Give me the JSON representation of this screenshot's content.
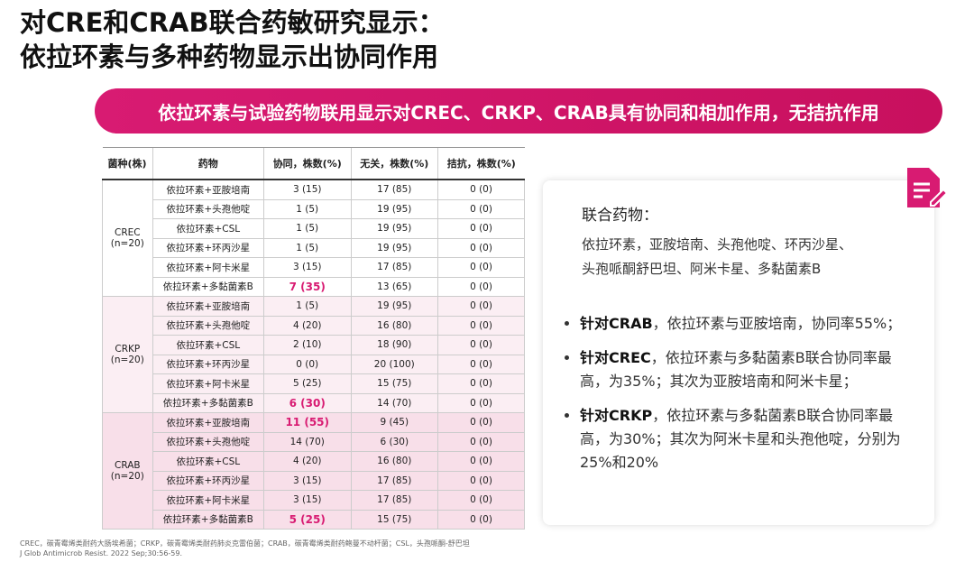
{
  "header": {
    "title_lines": [
      "对CRE和CRAB联合药敏研究显示：",
      "依拉环素与多种药物显示出协同作用"
    ]
  },
  "banner": "依拉环素与试验药物联用显示对CREC、CRKP、CRAB具有协同和相加作用，无拮抗作用",
  "table": {
    "columns": [
      "菌种(株)",
      "药物",
      "协同，株数(%)",
      "无关，株数(%)",
      "拮抗，株数(%)"
    ],
    "groups": [
      {
        "name": "CREC",
        "n": "(n=20)",
        "rows": [
          [
            "依拉环素+亚胺培南",
            "3 (15)",
            "17 (85)",
            "0 (0)"
          ],
          [
            "依拉环素+头孢他啶",
            "1 (5)",
            "19 (95)",
            "0 (0)"
          ],
          [
            "依拉环素+CSL",
            "1 (5)",
            "19 (95)",
            "0 (0)"
          ],
          [
            "依拉环素+环丙沙星",
            "1 (5)",
            "19 (95)",
            "0 (0)"
          ],
          [
            "依拉环素+阿卡米星",
            "3 (15)",
            "17 (85)",
            "0 (0)"
          ],
          [
            "依拉环素+多黏菌素B",
            "7 (35)",
            "13 (65)",
            "0 (0)"
          ]
        ]
      },
      {
        "name": "CRKP",
        "n": "(n=20)",
        "rows": [
          [
            "依拉环素+亚胺培南",
            "1 (5)",
            "19 (95)",
            "0 (0)"
          ],
          [
            "依拉环素+头孢他啶",
            "4 (20)",
            "16 (80)",
            "0 (0)"
          ],
          [
            "依拉环素+CSL",
            "2 (10)",
            "18 (90)",
            "0 (0)"
          ],
          [
            "依拉环素+环丙沙星",
            "0 (0)",
            "20 (100)",
            "0 (0)"
          ],
          [
            "依拉环素+阿卡米星",
            "5 (25)",
            "15 (75)",
            "0 (0)"
          ],
          [
            "依拉环素+多黏菌素B",
            "6 (30)",
            "14 (70)",
            "0 (0)"
          ]
        ]
      },
      {
        "name": "CRAB",
        "n": "(n=20)",
        "rows": [
          [
            "依拉环素+亚胺培南",
            "11 (55)",
            "9 (45)",
            "0 (0)"
          ],
          [
            "依拉环素+头孢他啶",
            "14 (70)",
            "6 (30)",
            "0 (0)"
          ],
          [
            "依拉环素+CSL",
            "4 (20)",
            "16 (80)",
            "0 (0)"
          ],
          [
            "依拉环素+环丙沙星",
            "3 (15)",
            "17 (85)",
            "0 (0)"
          ],
          [
            "依拉环素+阿卡米星",
            "3 (15)",
            "17 (85)",
            "0 (0)"
          ],
          [
            "依拉环素+多黏菌素B",
            "5 (25)",
            "15 (75)",
            "0 (0)"
          ]
        ]
      }
    ]
  },
  "panel": {
    "heading": "联合药物：",
    "drug_lines": [
      "依拉环素，亚胺培南、头孢他啶、环丙沙星、",
      "头孢哌酮舒巴坦、阿米卡星、多黏菌素B"
    ],
    "bullets": [
      {
        "bold": "针对CRAB",
        "text": "，依拉环素与亚胺培南，协同率55%；"
      },
      {
        "bold": "针对CREC",
        "text": "，依拉环素与多黏菌素B联合协同率最高，为35%；其次为亚胺培南和阿米卡星；"
      },
      {
        "bold": "针对CRKP",
        "text": "，依拉环素与多黏菌素B联合协同率最高，为30%；其次为阿米卡星和头孢他啶，分别为25%和20%"
      }
    ]
  },
  "footnote": [
    "CREC，碳青霉烯类耐药大肠埃希菌；CRKP，碳青霉烯类耐药肺炎克雷伯菌；CRAB，碳青霉烯类耐药鲍曼不动杆菌；CSL，头孢哌酮-舒巴坦",
    "J Glob Antimicrob Resist. 2022 Sep;30:56-59."
  ]
}
